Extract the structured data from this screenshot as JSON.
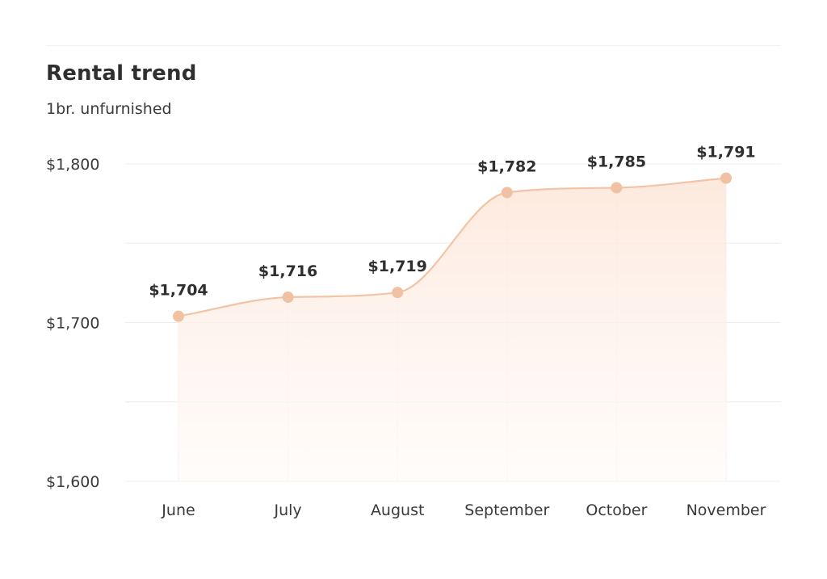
{
  "header": {
    "title": "Rental trend",
    "subtitle": "1br. unfurnished"
  },
  "chart_data": {
    "type": "area",
    "title": "Rental trend",
    "subtitle": "1br. unfurnished",
    "categories": [
      "June",
      "July",
      "August",
      "September",
      "October",
      "November"
    ],
    "series": [
      {
        "values": [
          1704,
          1716,
          1719,
          1782,
          1785,
          1791
        ],
        "labels": [
          "$1,704",
          "$1,716",
          "$1,719",
          "$1,782",
          "$1,785",
          "$1,791"
        ]
      }
    ],
    "y_ticks": [
      {
        "value": 1800,
        "label": "$1,800"
      },
      {
        "value": 1700,
        "label": "$1,700"
      },
      {
        "value": 1600,
        "label": "$1,600"
      }
    ],
    "ylim": [
      1600,
      1800
    ],
    "grid": true,
    "colors": {
      "line": "#f2c3a4",
      "marker": "#f0c1a2",
      "fill_top": "#fde7da",
      "fill_bottom": "#fffaf7",
      "grid": "#ececec"
    }
  }
}
